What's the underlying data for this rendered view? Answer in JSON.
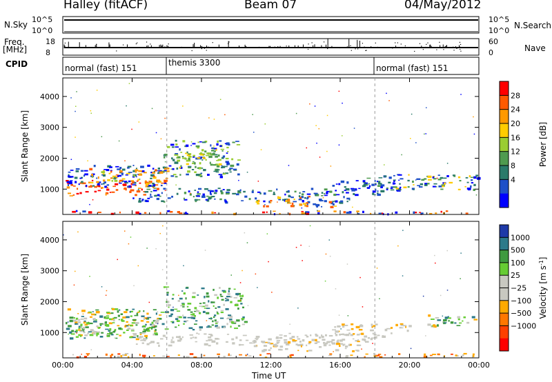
{
  "header": {
    "radar_title": "Halley (fitACF)",
    "beam": "Beam 07",
    "date": "04/May/2012"
  },
  "top_panels": {
    "nsky_label": "N.Sky",
    "nsky_ticks": [
      "10^5",
      "10^0"
    ],
    "nsearch_label": "N.Search",
    "nsearch_ticks": [
      "10^5",
      "10^0"
    ],
    "freq_label_1": "Freq.",
    "freq_label_2": "[MHz]",
    "freq_ticks": [
      "18",
      "8"
    ],
    "nave_label": "Nave",
    "nave_ticks": [
      "60",
      "0"
    ],
    "cpid_label": "CPID",
    "cpid_segments": [
      {
        "label": "normal (fast) 151",
        "start_h": 0,
        "end_h": 6
      },
      {
        "label": "themis 3300",
        "start_h": 6,
        "end_h": 18
      },
      {
        "label": "normal (fast) 151",
        "start_h": 18,
        "end_h": 24
      }
    ]
  },
  "chart_data": [
    {
      "type": "heatmap",
      "title": "Power",
      "ylabel": "Slant Range [km]",
      "xlabel": "Time UT",
      "xlim_hours": [
        0,
        24
      ],
      "ylim": [
        180,
        4600
      ],
      "y_ticks": [
        1000,
        2000,
        3000,
        4000
      ],
      "x_tick_labels": [
        "00:00",
        "04:00",
        "08:00",
        "12:00",
        "16:00",
        "20:00",
        "00:00"
      ],
      "colorbar": {
        "label": "Power [dB]",
        "ticks": [
          "28",
          "24",
          "20",
          "16",
          "12",
          "8",
          "4"
        ],
        "colors": [
          "#ff0000",
          "#ff5a00",
          "#ff9900",
          "#ffcc00",
          "#9acd32",
          "#4f9a4f",
          "#2a7a6a",
          "#1e50c8",
          "#0000ff"
        ]
      }
    },
    {
      "type": "heatmap",
      "title": "Velocity",
      "ylabel": "Slant Range [km]",
      "xlabel": "Time UT",
      "xlim_hours": [
        0,
        24
      ],
      "ylim": [
        180,
        4600
      ],
      "y_ticks": [
        1000,
        2000,
        3000,
        4000
      ],
      "x_tick_labels": [
        "00:00",
        "04:00",
        "08:00",
        "12:00",
        "16:00",
        "20:00",
        "00:00"
      ],
      "colorbar": {
        "label": "Velocity [m s",
        "label_sup": "-1",
        "label_end": "]",
        "ticks": [
          "1000",
          "500",
          "100",
          "25",
          "−25",
          "−100",
          "−500",
          "−1000"
        ],
        "colors": [
          "#1e3aa8",
          "#2d7a8a",
          "#3f9a3f",
          "#66cc33",
          "#c8c8c0",
          "#c8c8c0",
          "#ffaa00",
          "#ff7700",
          "#ff4000",
          "#ff0000"
        ]
      }
    }
  ],
  "xaxis_label": "Time UT"
}
